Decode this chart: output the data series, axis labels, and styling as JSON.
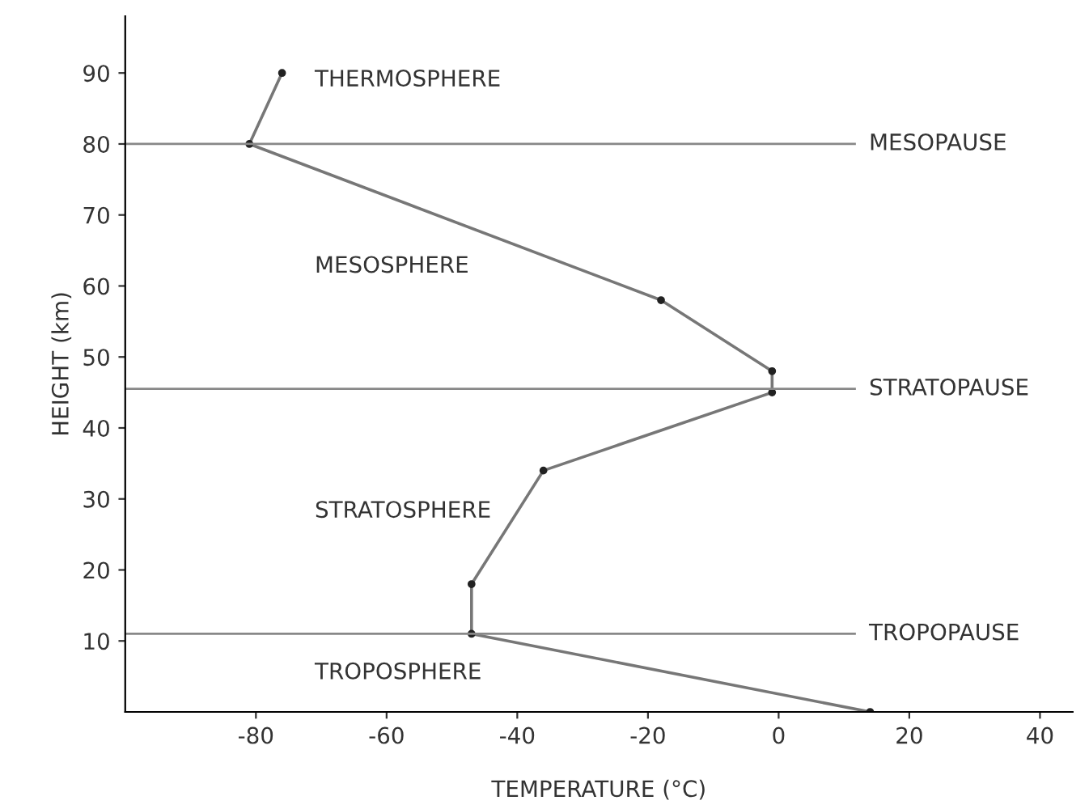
{
  "chart_data": {
    "type": "line",
    "xlabel": "TEMPERATURE (°C)",
    "ylabel": "HEIGHT (km)",
    "series": [
      {
        "color": "#777777",
        "x": [
          14,
          -47,
          -47,
          -36,
          -1,
          -1,
          -18,
          -81,
          -76
        ],
        "values": [
          0,
          11,
          18,
          34,
          45,
          48,
          58,
          80,
          90
        ]
      }
    ],
    "marker": "circle",
    "line_style": "solid",
    "xlim": [
      -100,
      45
    ],
    "xticks": [
      -80,
      -60,
      -40,
      -20,
      0,
      20,
      40
    ],
    "ylim": [
      0,
      98
    ],
    "yticks": [
      10,
      20,
      30,
      40,
      50,
      60,
      70,
      80,
      90
    ],
    "grid": false,
    "legend": false,
    "ref_lines": [
      {
        "axis": "y",
        "value": 80,
        "label": "MESOPAUSE",
        "color": "#888888"
      },
      {
        "axis": "y",
        "value": 45.5,
        "label": "STRATOPAUSE",
        "color": "#888888"
      },
      {
        "axis": "y",
        "value": 11,
        "label": "TROPOPAUSE",
        "color": "#888888"
      }
    ],
    "annotations": [
      "THERMOSPHERE",
      "MESOSPHERE",
      "STRATOSPHERE",
      "TROPOSPHERE"
    ]
  }
}
